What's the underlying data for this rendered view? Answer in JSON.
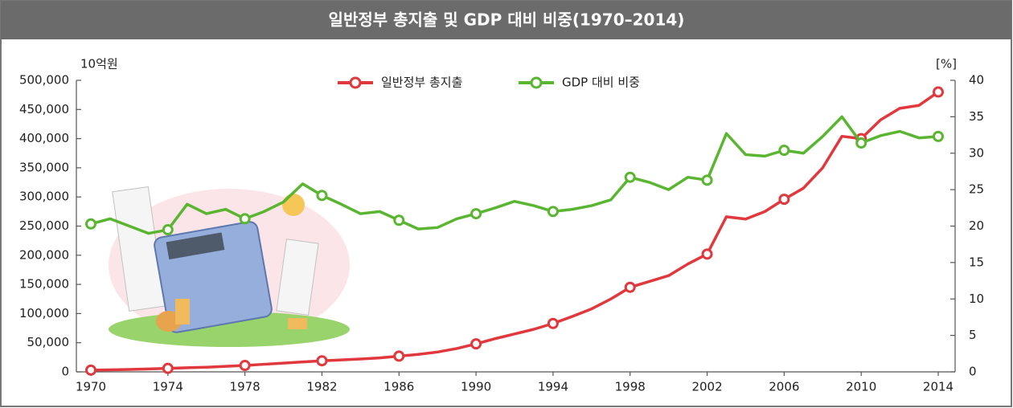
{
  "chart_data": {
    "type": "line",
    "title": "일반정부 총지출 및 GDP 대비 비중(1970–2014)",
    "y_label": "10억원",
    "y2_label": "[%]",
    "x": [
      1970,
      1971,
      1972,
      1973,
      1974,
      1975,
      1976,
      1977,
      1978,
      1979,
      1980,
      1981,
      1982,
      1983,
      1984,
      1985,
      1986,
      1987,
      1988,
      1989,
      1990,
      1991,
      1992,
      1993,
      1994,
      1995,
      1996,
      1997,
      1998,
      1999,
      2000,
      2001,
      2002,
      2003,
      2004,
      2005,
      2006,
      2007,
      2008,
      2009,
      2010,
      2011,
      2012,
      2013,
      2014
    ],
    "xlim": [
      1970,
      2014
    ],
    "xticks": [
      1970,
      1974,
      1978,
      1982,
      1986,
      1990,
      1994,
      1998,
      2002,
      2006,
      2010,
      2014
    ],
    "ylim": [
      0,
      500000
    ],
    "yticks": [
      0,
      {
        "value": 50000,
        "label": "50,000"
      },
      {
        "value": 100000,
        "label": "100,000"
      },
      {
        "value": 150000,
        "label": "150,000"
      },
      {
        "value": 200000,
        "label": "200,000"
      },
      {
        "value": 250000,
        "label": "250,000"
      },
      {
        "value": 300000,
        "label": "300,000"
      },
      {
        "value": 350000,
        "label": "350,000"
      },
      {
        "value": 400000,
        "label": "400,000"
      },
      {
        "value": 450000,
        "label": "450,000"
      },
      {
        "value": 500000,
        "label": "500,000"
      }
    ],
    "y2lim": [
      0,
      40
    ],
    "y2ticks": [
      0,
      5,
      10,
      15,
      20,
      25,
      30,
      35,
      40
    ],
    "legend": "top",
    "series": [
      {
        "name": "일반정부 총지출",
        "color": "#e0383c",
        "axis": "y",
        "values": [
          3000,
          3500,
          4200,
          5000,
          6000,
          7000,
          8000,
          9500,
          11000,
          13000,
          15000,
          17000,
          19000,
          20500,
          22000,
          24000,
          27000,
          30000,
          34000,
          40000,
          48000,
          57000,
          65000,
          73000,
          83000,
          95000,
          108000,
          125000,
          145000,
          155000,
          165000,
          185000,
          202000,
          266000,
          262000,
          275000,
          296000,
          315000,
          350000,
          404000,
          400000,
          432000,
          452000,
          457000,
          480000
        ]
      },
      {
        "name": "GDP 대비 비중",
        "color": "#5ab531",
        "axis": "y2",
        "values": [
          20.3,
          21,
          20,
          19,
          19.5,
          23,
          21.7,
          22.3,
          21,
          22,
          23.3,
          25.8,
          24.2,
          23,
          21.7,
          22,
          20.8,
          19.6,
          19.8,
          21,
          21.7,
          22.5,
          23.4,
          22.8,
          22,
          22.3,
          22.8,
          23.6,
          26.7,
          26,
          25,
          26.7,
          26.3,
          32.7,
          29.8,
          29.6,
          30.4,
          30,
          32.3,
          35,
          31.4,
          32.4,
          33,
          32.1,
          32.3
        ]
      }
    ]
  }
}
